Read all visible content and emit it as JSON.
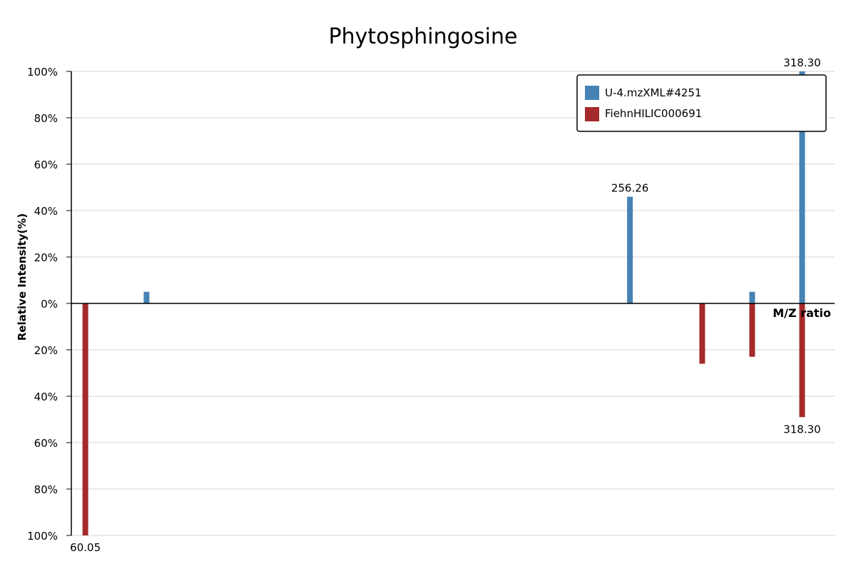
{
  "chart_data": {
    "type": "bar",
    "title": "Phytosphingosine",
    "xlabel": "M/Z ratio",
    "ylabel": "Relative Intensity(%)",
    "ylim": [
      -100,
      100
    ],
    "y_tick_labels": [
      "100%",
      "80%",
      "60%",
      "40%",
      "20%",
      "0%",
      "20%",
      "40%",
      "60%",
      "80%",
      "100%"
    ],
    "y_tick_values": [
      100,
      80,
      60,
      40,
      20,
      0,
      -20,
      -40,
      -60,
      -80,
      -100
    ],
    "xlim": [
      55,
      330
    ],
    "grid": true,
    "legend_position": "top-right",
    "series": [
      {
        "name": "U-4.mzXML#4251",
        "color": "#4682b4",
        "direction": "up",
        "peaks": [
          {
            "x": 82.1,
            "y": 5
          },
          {
            "x": 256.26,
            "y": 46,
            "label": "256.26"
          },
          {
            "x": 300.3,
            "y": 5
          },
          {
            "x": 318.3,
            "y": 100,
            "label": "318.30"
          }
        ]
      },
      {
        "name": "FiehnHILIC000691",
        "color": "#a52a2a",
        "direction": "down",
        "peaks": [
          {
            "x": 60.05,
            "y": 100,
            "label": "60.05"
          },
          {
            "x": 282.3,
            "y": 26
          },
          {
            "x": 300.3,
            "y": 23
          },
          {
            "x": 318.3,
            "y": 49,
            "label": "318.30"
          }
        ]
      }
    ]
  }
}
